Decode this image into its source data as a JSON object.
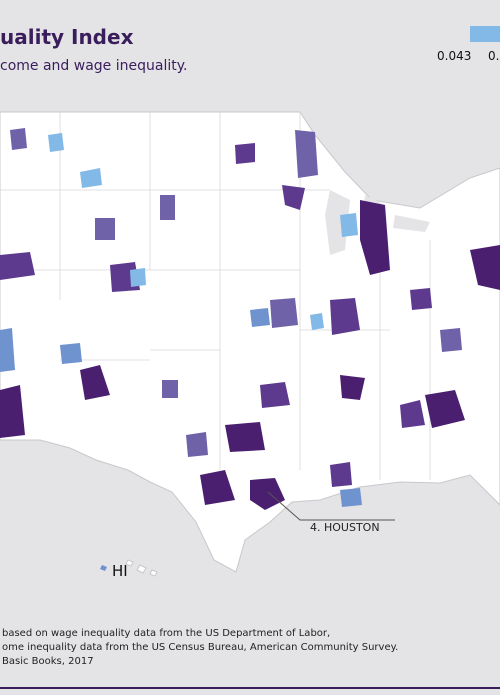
{
  "header": {
    "title": "uality Index",
    "subtitle": "come and wage inequality."
  },
  "legend": {
    "labels": [
      "0.043",
      "0."
    ]
  },
  "annotations": {
    "callout": "4. HOUSTON",
    "hawaii": "HI"
  },
  "footnote": {
    "lines": [
      "based on wage inequality data from the US Department of Labor,",
      "ome inequality data from the US Census Bureau, American Community Survey.",
      "Basic Books, 2017"
    ]
  }
}
